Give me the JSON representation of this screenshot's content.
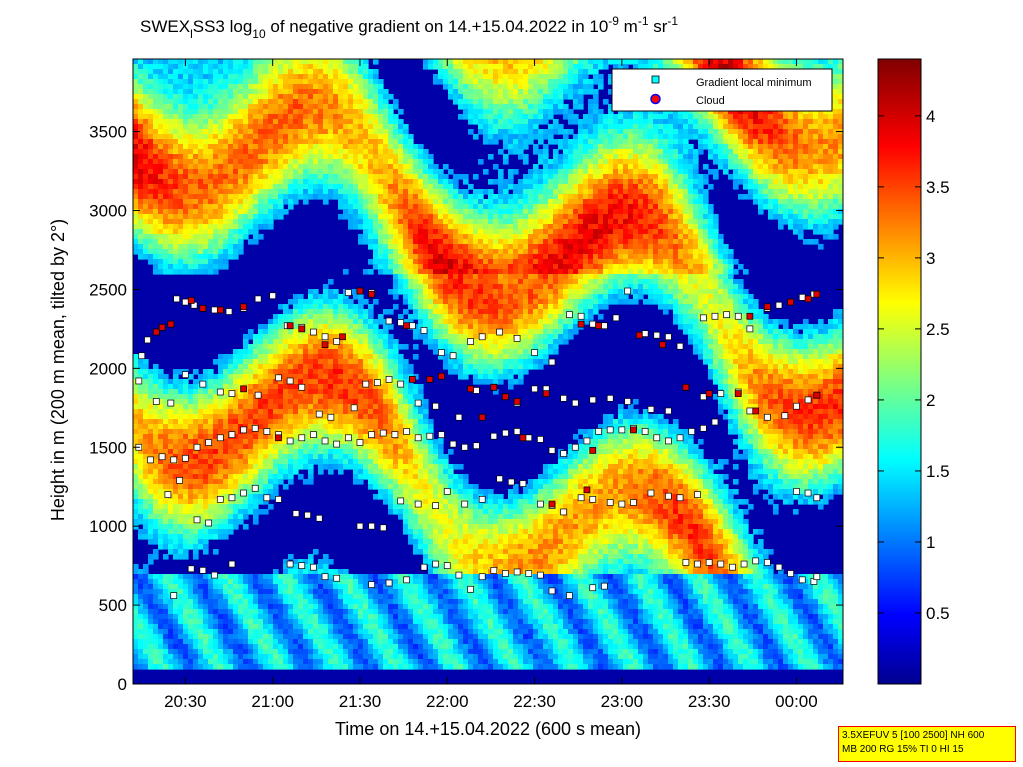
{
  "chart_data": {
    "type": "heatmap",
    "title": {
      "prefix": "SWEX",
      "sub1": "l",
      "mid": "SS3 log",
      "sub2": "10",
      "rest": " of negative gradient on 14.+15.04.2022 in 10",
      "sup1": "-9",
      "unit1": " m",
      "sup2": "-1",
      "unit2": " sr",
      "sup3": "-1"
    },
    "xlabel": "Time on 14.+15.04.2022 (600 s mean)",
    "ylabel": "Height in m (200 m mean, tilted by 2°)",
    "x_ticks": [
      "20:30",
      "21:00",
      "21:30",
      "22:00",
      "22:30",
      "23:00",
      "23:30",
      "00:00"
    ],
    "x_tick_minutes": [
      30,
      60,
      90,
      120,
      150,
      180,
      210,
      240
    ],
    "x_range_minutes_after_20h": [
      12,
      256
    ],
    "y_ticks": [
      0,
      500,
      1000,
      1500,
      2000,
      2500,
      3000,
      3500
    ],
    "ylim": [
      0,
      3960
    ],
    "colorbar": {
      "ticks": [
        "0.5",
        "1",
        "1.5",
        "2",
        "2.5",
        "3",
        "3.5",
        "4"
      ],
      "tick_values": [
        0.5,
        1,
        1.5,
        2,
        2.5,
        3,
        3.5,
        4
      ],
      "range": [
        0,
        4.4
      ],
      "colormap": "jet"
    },
    "legend": {
      "placement": "top-right",
      "entries": [
        {
          "label": "Gradient local minimum",
          "color": "#00ffff"
        },
        {
          "label": "Cloud",
          "color": "#ff0000"
        }
      ]
    },
    "series": [
      {
        "name": "Gradient local minimum",
        "points": [
          [
            "20:15",
            2080
          ],
          [
            "20:17",
            2180
          ],
          [
            "20:20",
            2230
          ],
          [
            "20:22",
            2260
          ],
          [
            "20:25",
            2280
          ],
          [
            "20:27",
            2440
          ],
          [
            "20:30",
            2420
          ],
          [
            "20:33",
            2400
          ],
          [
            "20:36",
            2380
          ],
          [
            "20:40",
            2370
          ],
          [
            "20:45",
            2360
          ],
          [
            "20:50",
            2380
          ],
          [
            "20:55",
            2440
          ],
          [
            "21:00",
            2460
          ],
          [
            "21:05",
            2270
          ],
          [
            "21:10",
            2260
          ],
          [
            "21:14",
            2230
          ],
          [
            "21:18",
            2200
          ],
          [
            "21:22",
            2170
          ],
          [
            "21:26",
            2480
          ],
          [
            "21:30",
            2490
          ],
          [
            "21:34",
            2480
          ],
          [
            "21:40",
            2300
          ],
          [
            "21:44",
            2290
          ],
          [
            "21:48",
            2270
          ],
          [
            "21:52",
            2240
          ],
          [
            "21:58",
            2100
          ],
          [
            "22:02",
            2080
          ],
          [
            "22:08",
            2170
          ],
          [
            "22:12",
            2200
          ],
          [
            "22:18",
            2230
          ],
          [
            "22:24",
            2190
          ],
          [
            "22:30",
            2100
          ],
          [
            "22:36",
            2040
          ],
          [
            "22:42",
            2340
          ],
          [
            "22:46",
            2330
          ],
          [
            "22:50",
            2280
          ],
          [
            "22:54",
            2270
          ],
          [
            "22:58",
            2320
          ],
          [
            "23:02",
            2490
          ],
          [
            "23:08",
            2220
          ],
          [
            "23:12",
            2210
          ],
          [
            "23:16",
            2200
          ],
          [
            "23:20",
            2140
          ],
          [
            "23:28",
            2320
          ],
          [
            "23:32",
            2330
          ],
          [
            "23:36",
            2340
          ],
          [
            "23:40",
            2330
          ],
          [
            "23:44",
            2250
          ],
          [
            "23:50",
            2380
          ],
          [
            "23:54",
            2400
          ],
          [
            "23:58",
            2420
          ],
          [
            "00:02",
            2450
          ],
          [
            "00:06",
            2470
          ],
          [
            "20:14",
            1920
          ],
          [
            "20:20",
            1790
          ],
          [
            "20:25",
            1780
          ],
          [
            "20:30",
            1960
          ],
          [
            "20:36",
            1900
          ],
          [
            "20:42",
            1850
          ],
          [
            "20:46",
            1840
          ],
          [
            "20:55",
            1830
          ],
          [
            "21:02",
            1940
          ],
          [
            "21:06",
            1920
          ],
          [
            "21:10",
            1880
          ],
          [
            "21:16",
            1710
          ],
          [
            "21:20",
            1690
          ],
          [
            "21:28",
            1750
          ],
          [
            "21:32",
            1900
          ],
          [
            "21:36",
            1910
          ],
          [
            "21:40",
            1930
          ],
          [
            "21:44",
            1900
          ],
          [
            "21:50",
            1780
          ],
          [
            "21:56",
            1760
          ],
          [
            "22:04",
            1690
          ],
          [
            "22:10",
            1860
          ],
          [
            "22:16",
            1880
          ],
          [
            "22:20",
            1820
          ],
          [
            "22:24",
            1780
          ],
          [
            "22:30",
            1870
          ],
          [
            "22:34",
            1870
          ],
          [
            "22:40",
            1810
          ],
          [
            "22:44",
            1780
          ],
          [
            "22:50",
            1800
          ],
          [
            "22:56",
            1810
          ],
          [
            "23:02",
            1790
          ],
          [
            "23:10",
            1740
          ],
          [
            "23:16",
            1730
          ],
          [
            "23:22",
            1880
          ],
          [
            "23:28",
            1820
          ],
          [
            "23:34",
            1840
          ],
          [
            "23:40",
            1850
          ],
          [
            "23:44",
            1730
          ],
          [
            "23:50",
            1690
          ],
          [
            "23:56",
            1700
          ],
          [
            "00:00",
            1760
          ],
          [
            "00:04",
            1800
          ],
          [
            "00:07",
            1830
          ],
          [
            "20:14",
            1500
          ],
          [
            "20:18",
            1420
          ],
          [
            "20:22",
            1440
          ],
          [
            "20:26",
            1420
          ],
          [
            "20:30",
            1430
          ],
          [
            "20:34",
            1500
          ],
          [
            "20:38",
            1530
          ],
          [
            "20:42",
            1560
          ],
          [
            "20:46",
            1580
          ],
          [
            "20:50",
            1610
          ],
          [
            "20:54",
            1620
          ],
          [
            "20:58",
            1600
          ],
          [
            "21:02",
            1580
          ],
          [
            "21:06",
            1540
          ],
          [
            "21:10",
            1560
          ],
          [
            "21:14",
            1580
          ],
          [
            "21:18",
            1540
          ],
          [
            "21:22",
            1520
          ],
          [
            "21:26",
            1560
          ],
          [
            "21:30",
            1530
          ],
          [
            "21:34",
            1580
          ],
          [
            "21:38",
            1590
          ],
          [
            "21:42",
            1580
          ],
          [
            "21:46",
            1600
          ],
          [
            "21:50",
            1560
          ],
          [
            "21:54",
            1570
          ],
          [
            "21:58",
            1580
          ],
          [
            "22:02",
            1520
          ],
          [
            "22:06",
            1500
          ],
          [
            "22:10",
            1510
          ],
          [
            "22:16",
            1570
          ],
          [
            "22:20",
            1590
          ],
          [
            "22:24",
            1600
          ],
          [
            "22:28",
            1560
          ],
          [
            "22:32",
            1550
          ],
          [
            "22:36",
            1480
          ],
          [
            "22:40",
            1460
          ],
          [
            "22:44",
            1500
          ],
          [
            "22:48",
            1540
          ],
          [
            "22:52",
            1600
          ],
          [
            "22:56",
            1610
          ],
          [
            "23:00",
            1610
          ],
          [
            "23:04",
            1620
          ],
          [
            "23:08",
            1600
          ],
          [
            "23:12",
            1560
          ],
          [
            "23:16",
            1540
          ],
          [
            "23:20",
            1560
          ],
          [
            "23:24",
            1600
          ],
          [
            "23:28",
            1620
          ],
          [
            "23:32",
            1660
          ],
          [
            "20:24",
            1200
          ],
          [
            "20:28",
            1290
          ],
          [
            "20:34",
            1040
          ],
          [
            "20:38",
            1020
          ],
          [
            "20:42",
            1170
          ],
          [
            "20:46",
            1180
          ],
          [
            "20:50",
            1210
          ],
          [
            "20:54",
            1240
          ],
          [
            "20:58",
            1180
          ],
          [
            "21:02",
            1170
          ],
          [
            "21:08",
            1080
          ],
          [
            "21:12",
            1070
          ],
          [
            "21:16",
            1050
          ],
          [
            "21:30",
            1000
          ],
          [
            "21:34",
            1000
          ],
          [
            "21:38",
            990
          ],
          [
            "21:44",
            1160
          ],
          [
            "21:50",
            1140
          ],
          [
            "21:56",
            1130
          ],
          [
            "22:00",
            1220
          ],
          [
            "22:06",
            1140
          ],
          [
            "22:12",
            1170
          ],
          [
            "22:18",
            1300
          ],
          [
            "22:22",
            1280
          ],
          [
            "22:26",
            1270
          ],
          [
            "22:32",
            1140
          ],
          [
            "22:36",
            1130
          ],
          [
            "22:40",
            1090
          ],
          [
            "22:46",
            1180
          ],
          [
            "22:50",
            1170
          ],
          [
            "22:56",
            1150
          ],
          [
            "23:00",
            1140
          ],
          [
            "23:04",
            1150
          ],
          [
            "23:10",
            1210
          ],
          [
            "23:16",
            1190
          ],
          [
            "23:20",
            1180
          ],
          [
            "23:26",
            1200
          ],
          [
            "00:00",
            1220
          ],
          [
            "00:04",
            1210
          ],
          [
            "00:07",
            1180
          ],
          [
            "20:32",
            730
          ],
          [
            "20:36",
            720
          ],
          [
            "20:40",
            690
          ],
          [
            "20:46",
            760
          ],
          [
            "21:06",
            760
          ],
          [
            "21:10",
            750
          ],
          [
            "21:14",
            740
          ],
          [
            "21:18",
            680
          ],
          [
            "21:22",
            670
          ],
          [
            "21:34",
            630
          ],
          [
            "21:40",
            640
          ],
          [
            "21:46",
            660
          ],
          [
            "21:52",
            740
          ],
          [
            "21:56",
            760
          ],
          [
            "22:00",
            750
          ],
          [
            "22:04",
            690
          ],
          [
            "22:08",
            600
          ],
          [
            "22:12",
            680
          ],
          [
            "22:16",
            720
          ],
          [
            "22:20",
            700
          ],
          [
            "22:24",
            710
          ],
          [
            "22:28",
            700
          ],
          [
            "22:32",
            690
          ],
          [
            "22:36",
            590
          ],
          [
            "22:42",
            560
          ],
          [
            "22:50",
            610
          ],
          [
            "22:54",
            620
          ],
          [
            "23:22",
            770
          ],
          [
            "23:26",
            760
          ],
          [
            "23:30",
            770
          ],
          [
            "23:34",
            760
          ],
          [
            "23:38",
            740
          ],
          [
            "23:42",
            760
          ],
          [
            "23:46",
            780
          ],
          [
            "23:50",
            770
          ],
          [
            "23:54",
            740
          ],
          [
            "23:58",
            700
          ],
          [
            "00:02",
            660
          ],
          [
            "00:06",
            650
          ],
          [
            "00:07",
            680
          ],
          [
            "20:26",
            560
          ]
        ]
      },
      {
        "name": "Cloud",
        "points": [
          [
            "20:20",
            2230
          ],
          [
            "20:25",
            2280
          ],
          [
            "20:32",
            2430
          ],
          [
            "20:36",
            2380
          ],
          [
            "20:42",
            2370
          ],
          [
            "20:50",
            2390
          ],
          [
            "21:06",
            2270
          ],
          [
            "21:10",
            2250
          ],
          [
            "21:18",
            2150
          ],
          [
            "21:24",
            2200
          ],
          [
            "21:30",
            2490
          ],
          [
            "21:34",
            2470
          ],
          [
            "21:46",
            2270
          ],
          [
            "21:54",
            1930
          ],
          [
            "21:58",
            1950
          ],
          [
            "22:08",
            1870
          ],
          [
            "22:16",
            1880
          ],
          [
            "22:24",
            1790
          ],
          [
            "22:34",
            1840
          ],
          [
            "22:46",
            2280
          ],
          [
            "22:52",
            2270
          ],
          [
            "23:06",
            2210
          ],
          [
            "23:14",
            2150
          ],
          [
            "23:22",
            1880
          ],
          [
            "23:30",
            1840
          ],
          [
            "23:40",
            1840
          ],
          [
            "23:46",
            1730
          ],
          [
            "23:50",
            2390
          ],
          [
            "23:58",
            2420
          ],
          [
            "00:04",
            2440
          ],
          [
            "00:07",
            2470
          ],
          [
            "00:07",
            1830
          ],
          [
            "20:50",
            1870
          ],
          [
            "21:48",
            1930
          ],
          [
            "22:12",
            1690
          ],
          [
            "22:20",
            1820
          ],
          [
            "22:50",
            1480
          ],
          [
            "23:04",
            1610
          ],
          [
            "22:36",
            1140
          ],
          [
            "22:48",
            1230
          ],
          [
            "22:26",
            1560
          ],
          [
            "20:22",
            2260
          ],
          [
            "21:02",
            1560
          ],
          [
            "23:44",
            2330
          ]
        ]
      }
    ]
  },
  "info_box": {
    "line1": "3.5XEFUV 5 [100 2500] NH 600",
    "line2": "MB 200 RG 15% TI 0 HI 15"
  }
}
